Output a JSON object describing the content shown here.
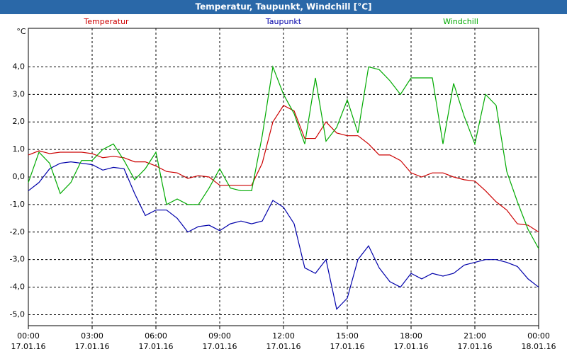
{
  "chart_data": {
    "type": "line",
    "title": "Temperatur, Taupunkt, Windchill [°C]",
    "y_unit": "°C",
    "x": [
      0,
      0.5,
      1,
      1.5,
      2,
      2.5,
      3,
      3.5,
      4,
      4.5,
      5,
      5.5,
      6,
      6.5,
      7,
      7.5,
      8,
      8.5,
      9,
      9.5,
      10,
      10.5,
      11,
      11.5,
      12,
      12.5,
      13,
      13.5,
      14,
      14.5,
      15,
      15.5,
      16,
      16.5,
      17,
      17.5,
      18,
      18.5,
      19,
      19.5,
      20,
      20.5,
      21,
      21.5,
      22,
      22.5,
      23,
      23.5,
      24
    ],
    "xlim": [
      0,
      24
    ],
    "xticks": [
      {
        "value": 0,
        "label": "00:00"
      },
      {
        "value": 3,
        "label": "03:00"
      },
      {
        "value": 6,
        "label": "06:00"
      },
      {
        "value": 9,
        "label": "09:00"
      },
      {
        "value": 12,
        "label": "12:00"
      },
      {
        "value": 15,
        "label": "15:00"
      },
      {
        "value": 18,
        "label": "18:00"
      },
      {
        "value": 21,
        "label": "21:00"
      },
      {
        "value": 24,
        "label": "00:00"
      }
    ],
    "xtick_dates": [
      "17.01.16",
      "17.01.16",
      "17.01.16",
      "17.01.16",
      "17.01.16",
      "17.01.16",
      "17.01.16",
      "17.01.16",
      "18.01.16"
    ],
    "ylim": [
      -5.4,
      5.4
    ],
    "yticks": [
      {
        "value": -5,
        "label": "-5,0"
      },
      {
        "value": -4,
        "label": "-4,0"
      },
      {
        "value": -3,
        "label": "-3,0"
      },
      {
        "value": -2,
        "label": "-2,0"
      },
      {
        "value": -1,
        "label": "-1,0"
      },
      {
        "value": 0,
        "label": "0,0"
      },
      {
        "value": 1,
        "label": "1,0"
      },
      {
        "value": 2,
        "label": "2,0"
      },
      {
        "value": 3,
        "label": "3,0"
      },
      {
        "value": 4,
        "label": "4,0"
      }
    ],
    "grid": true,
    "series": [
      {
        "name": "Temperatur",
        "color": "#cc0000",
        "values": [
          0.8,
          0.95,
          0.85,
          0.9,
          0.9,
          0.9,
          0.85,
          0.7,
          0.75,
          0.7,
          0.55,
          0.55,
          0.4,
          0.2,
          0.15,
          -0.05,
          0.05,
          0,
          -0.3,
          -0.3,
          -0.3,
          -0.3,
          0.5,
          2.0,
          2.6,
          2.4,
          1.4,
          1.4,
          2.0,
          1.6,
          1.5,
          1.5,
          1.2,
          0.8,
          0.8,
          0.6,
          0.15,
          0,
          0.15,
          0.15,
          0,
          -0.1,
          -0.15,
          -0.5,
          -0.9,
          -1.2,
          -1.7,
          -1.75,
          -2.0
        ]
      },
      {
        "name": "Taupunkt",
        "color": "#0000aa",
        "values": [
          -0.5,
          -0.2,
          0.3,
          0.5,
          0.55,
          0.5,
          0.45,
          0.25,
          0.35,
          0.3,
          -0.6,
          -1.4,
          -1.2,
          -1.2,
          -1.5,
          -2.0,
          -1.8,
          -1.75,
          -1.95,
          -1.7,
          -1.6,
          -1.7,
          -1.6,
          -0.85,
          -1.1,
          -1.7,
          -3.3,
          -3.5,
          -3.0,
          -4.8,
          -4.4,
          -3.0,
          -2.5,
          -3.3,
          -3.8,
          -4.0,
          -3.5,
          -3.7,
          -3.5,
          -3.6,
          -3.5,
          -3.2,
          -3.1,
          -3.0,
          -3.0,
          -3.1,
          -3.25,
          -3.7,
          -4.0
        ]
      },
      {
        "name": "Windchill",
        "color": "#00aa00",
        "values": [
          -0.2,
          0.9,
          0.5,
          -0.6,
          -0.2,
          0.6,
          0.6,
          1.0,
          1.2,
          0.6,
          -0.1,
          0.3,
          0.9,
          -1.0,
          -0.8,
          -1.0,
          -1.0,
          -0.4,
          0.3,
          -0.4,
          -0.5,
          -0.5,
          1.5,
          4.0,
          3.0,
          2.3,
          1.2,
          3.6,
          1.3,
          1.8,
          2.8,
          1.6,
          4.0,
          3.9,
          3.5,
          3.0,
          3.6,
          3.6,
          3.6,
          1.2,
          3.4,
          2.2,
          1.2,
          3.0,
          2.6,
          0.2,
          -0.9,
          -1.9,
          -2.6
        ]
      }
    ]
  }
}
